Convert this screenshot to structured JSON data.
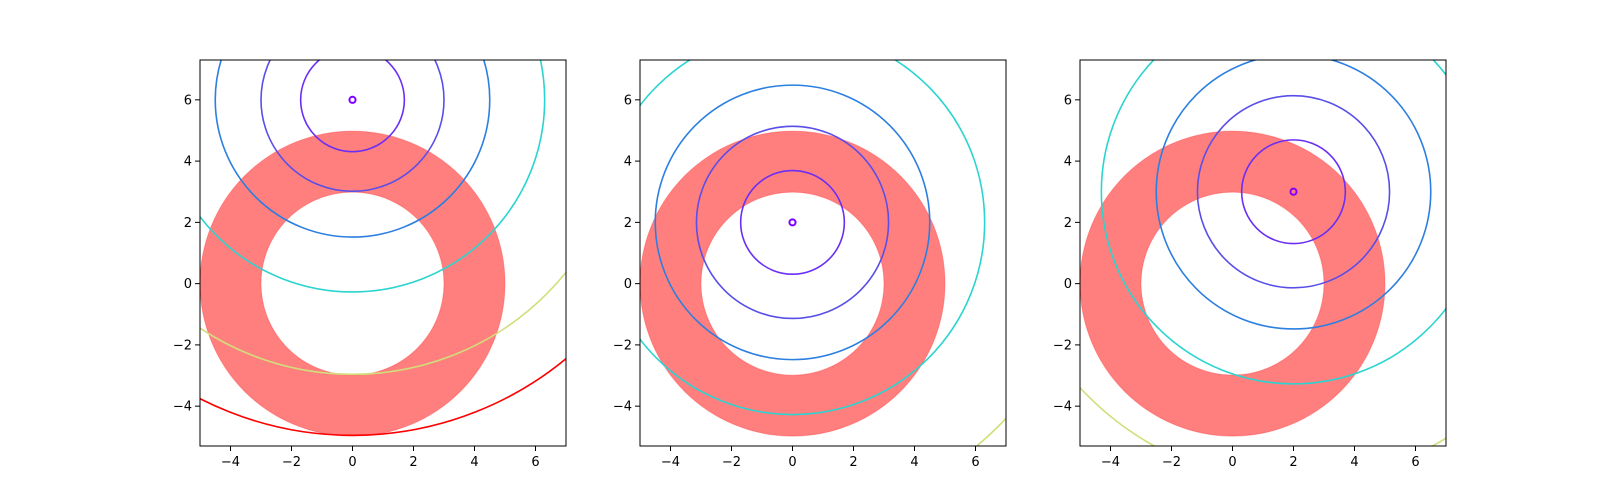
{
  "chart_data": [
    {
      "type": "line",
      "title": "",
      "xlabel": "",
      "ylabel": "",
      "xlim": [
        -5,
        7
      ],
      "ylim": [
        -5.3,
        7.3
      ],
      "xticks": [
        -4,
        -2,
        0,
        2,
        4,
        6
      ],
      "yticks": [
        -4,
        -2,
        0,
        2,
        4,
        6
      ],
      "xtick_labels": [
        "−4",
        "−2",
        "0",
        "2",
        "4",
        "6"
      ],
      "ytick_labels": [
        "−4",
        "−2",
        "0",
        "2",
        "4",
        "6"
      ],
      "annulus": {
        "center": [
          0,
          0
        ],
        "inner_radius": 3,
        "outer_radius": 5,
        "color": "#ff0000",
        "alpha": 0.5
      },
      "circles_center": [
        0,
        6
      ],
      "circles": [
        {
          "radius": 0.1,
          "color": "#8000ff"
        },
        {
          "radius": 1.7,
          "color": "#6a2ef5"
        },
        {
          "radius": 3.0,
          "color": "#5a4ee8"
        },
        {
          "radius": 4.5,
          "color": "#2c7fe0"
        },
        {
          "radius": 6.3,
          "color": "#2ad4d0"
        },
        {
          "radius": 9.0,
          "color": "#d2de7a"
        },
        {
          "radius": 11.0,
          "color": "#ff0000"
        }
      ]
    },
    {
      "type": "line",
      "title": "",
      "xlabel": "",
      "ylabel": "",
      "xlim": [
        -5,
        7
      ],
      "ylim": [
        -5.3,
        7.3
      ],
      "xticks": [
        -4,
        -2,
        0,
        2,
        4,
        6
      ],
      "yticks": [
        -4,
        -2,
        0,
        2,
        4,
        6
      ],
      "xtick_labels": [
        "−4",
        "−2",
        "0",
        "2",
        "4",
        "6"
      ],
      "ytick_labels": [
        "−4",
        "−2",
        "0",
        "2",
        "4",
        "6"
      ],
      "annulus": {
        "center": [
          0,
          0
        ],
        "inner_radius": 3,
        "outer_radius": 5,
        "color": "#ff0000",
        "alpha": 0.5
      },
      "circles_center": [
        0,
        2
      ],
      "circles": [
        {
          "radius": 0.1,
          "color": "#8000ff"
        },
        {
          "radius": 1.7,
          "color": "#6a2ef5"
        },
        {
          "radius": 3.15,
          "color": "#5a4ee8"
        },
        {
          "radius": 4.5,
          "color": "#2c7fe0"
        },
        {
          "radius": 6.3,
          "color": "#2ad4d0"
        },
        {
          "radius": 9.5,
          "color": "#d2de7a"
        }
      ]
    },
    {
      "type": "line",
      "title": "",
      "xlabel": "",
      "ylabel": "",
      "xlim": [
        -5,
        7
      ],
      "ylim": [
        -5.3,
        7.3
      ],
      "xticks": [
        -4,
        -2,
        0,
        2,
        4,
        6
      ],
      "yticks": [
        -4,
        -2,
        0,
        2,
        4,
        6
      ],
      "xtick_labels": [
        "−4",
        "−2",
        "0",
        "2",
        "4",
        "6"
      ],
      "ytick_labels": [
        "−4",
        "−2",
        "0",
        "2",
        "4",
        "6"
      ],
      "annulus": {
        "center": [
          0,
          0
        ],
        "inner_radius": 3,
        "outer_radius": 5,
        "color": "#ff0000",
        "alpha": 0.5
      },
      "circles_center": [
        2,
        3
      ],
      "circles": [
        {
          "radius": 0.1,
          "color": "#8000ff"
        },
        {
          "radius": 1.7,
          "color": "#6a2ef5"
        },
        {
          "radius": 3.15,
          "color": "#5a4ee8"
        },
        {
          "radius": 4.5,
          "color": "#2c7fe0"
        },
        {
          "radius": 6.3,
          "color": "#2ad4d0"
        },
        {
          "radius": 9.5,
          "color": "#d2de7a"
        }
      ]
    }
  ]
}
